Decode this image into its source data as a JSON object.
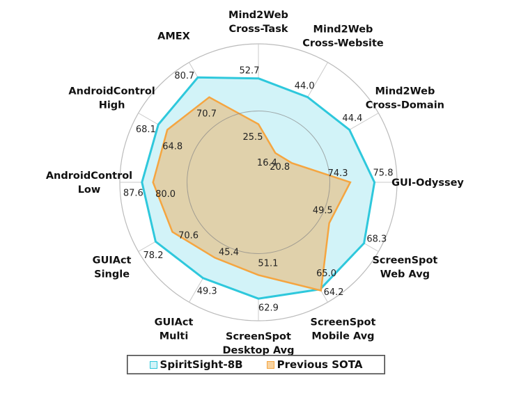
{
  "chart_data": {
    "type": "radar",
    "axes": [
      {
        "label": [
          "Mind2Web",
          "Cross-Task"
        ],
        "range": [
          -9.1,
          73.3
        ]
      },
      {
        "label": [
          "Mind2Web",
          "Cross-Website"
        ],
        "range": [
          1.9,
          61.2
        ]
      },
      {
        "label": [
          "Mind2Web",
          "Cross-Domain"
        ],
        "range": [
          7.1,
          56.3
        ]
      },
      {
        "label": [
          "GUI-Odyssey"
        ],
        "range": [
          68.6,
          77.2
        ]
      },
      {
        "label": [
          "ScreenSpot",
          "Web Avg"
        ],
        "range": [
          11.3,
          76.1
        ]
      },
      {
        "label": [
          "ScreenSpot",
          "Mobile Avg"
        ],
        "range": [
          0,
          72
        ]
      },
      {
        "label": [
          "ScreenSpot",
          "Desktop Avg"
        ],
        "range": [
          4.6,
          74
        ]
      },
      {
        "label": [
          "GUIAct",
          "Multi"
        ],
        "range": [
          31,
          53.9
        ]
      },
      {
        "label": [
          "GUIAct",
          "Single"
        ],
        "range": [
          31.7,
          86
        ]
      },
      {
        "label": [
          "AndroidControl",
          "Low"
        ],
        "range": [
          7.6,
          102.8
        ]
      },
      {
        "label": [
          "AndroidControl",
          "High"
        ],
        "range": [
          31.4,
          75.4
        ]
      },
      {
        "label": [
          "AMEX"
        ],
        "range": [
          27.7,
          88.3
        ]
      }
    ],
    "series": [
      {
        "name": "SpiritSight-8B",
        "color": "#2ec8dc",
        "fill": "#d2f3f8",
        "values": [
          52.7,
          44.0,
          44.4,
          75.8,
          68.3,
          64.2,
          62.9,
          49.3,
          78.2,
          87.6,
          68.1,
          80.7
        ]
      },
      {
        "name": "Previous SOTA",
        "color": "#f5a540",
        "fill": "#e0cfa6",
        "values": [
          25.5,
          16.4,
          20.8,
          74.3,
          49.5,
          65.0,
          51.1,
          45.4,
          70.6,
          80.0,
          64.8,
          70.7
        ]
      }
    ],
    "grid": true,
    "legend_placement": "bottom"
  }
}
